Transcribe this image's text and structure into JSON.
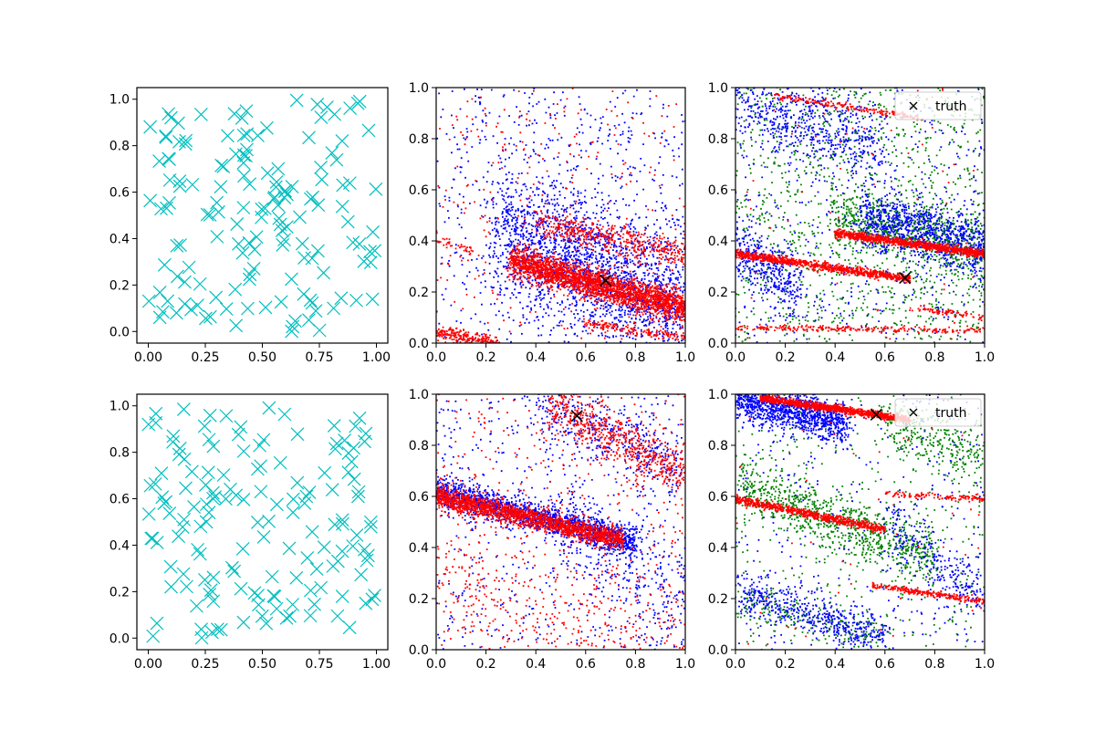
{
  "figure": {
    "layout": "2x3 grid of scatter panels"
  },
  "colors": {
    "samples": "#00bfbf",
    "series_blue": "#0000ff",
    "series_red": "#ff0000",
    "series_green": "#008000",
    "truth": "#000000",
    "axes": "#000000"
  },
  "chart_data": [
    {
      "id": "top-left",
      "type": "scatter",
      "title": "",
      "xlabel": "",
      "ylabel": "",
      "xlim": [
        -0.05,
        1.05
      ],
      "ylim": [
        -0.05,
        1.05
      ],
      "xticks": [
        "0.00",
        "0.25",
        "0.50",
        "0.75",
        "1.00"
      ],
      "yticks": [
        "0.0",
        "0.2",
        "0.4",
        "0.6",
        "0.8",
        "1.0"
      ],
      "series": [
        {
          "name": "samples",
          "marker": "x",
          "color": "#00bfbf",
          "count": 150,
          "distribution": "uniform over [0,1]x[0,1]",
          "seed": 11
        }
      ]
    },
    {
      "id": "top-middle",
      "type": "scatter",
      "title": "",
      "xlabel": "",
      "ylabel": "",
      "xlim": [
        0,
        1
      ],
      "ylim": [
        0,
        1
      ],
      "xticks": [
        "0.0",
        "0.2",
        "0.4",
        "0.6",
        "0.8",
        "1.0"
      ],
      "yticks": [
        "0.0",
        "0.2",
        "0.4",
        "0.6",
        "0.8",
        "1.0"
      ],
      "series": [
        {
          "name": "blue",
          "color": "#0000ff",
          "seed": 21,
          "background": 700,
          "bands": [
            {
              "from": [
                0.25,
                0.45
              ],
              "to": [
                1.0,
                0.13
              ],
              "spread": 0.13,
              "count": 2000
            }
          ]
        },
        {
          "name": "red",
          "color": "#ff0000",
          "seed": 22,
          "background": 300,
          "bands": [
            {
              "from": [
                0.3,
                0.32
              ],
              "to": [
                1.0,
                0.14
              ],
              "spread": 0.03,
              "count": 2400
            },
            {
              "from": [
                0.0,
                0.04
              ],
              "to": [
                0.25,
                0.0
              ],
              "spread": 0.015,
              "count": 250
            },
            {
              "from": [
                0.4,
                0.47
              ],
              "to": [
                1.0,
                0.35
              ],
              "spread": 0.03,
              "count": 450
            },
            {
              "from": [
                0.0,
                0.4
              ],
              "to": [
                0.15,
                0.36
              ],
              "spread": 0.01,
              "count": 40
            },
            {
              "from": [
                0.6,
                0.08
              ],
              "to": [
                1.0,
                0.02
              ],
              "spread": 0.01,
              "count": 150
            }
          ]
        }
      ],
      "truth": {
        "x": 0.68,
        "y": 0.245
      }
    },
    {
      "id": "top-right",
      "type": "scatter",
      "title": "",
      "xlabel": "",
      "ylabel": "",
      "xlim": [
        0,
        1
      ],
      "ylim": [
        0,
        1
      ],
      "xticks": [
        "0.0",
        "0.2",
        "0.4",
        "0.6",
        "0.8",
        "1.0"
      ],
      "yticks": [
        "0.0",
        "0.2",
        "0.4",
        "0.6",
        "0.8",
        "1.0"
      ],
      "series": [
        {
          "name": "green",
          "color": "#008000",
          "seed": 31,
          "background": 1200,
          "bands": [
            {
              "from": [
                0.4,
                0.5
              ],
              "to": [
                1.0,
                0.36
              ],
              "spread": 0.06,
              "count": 700
            }
          ]
        },
        {
          "name": "blue",
          "color": "#0000ff",
          "seed": 32,
          "background": 500,
          "bands": [
            {
              "from": [
                0.0,
                0.95
              ],
              "to": [
                0.6,
                0.75
              ],
              "spread": 0.08,
              "count": 600
            },
            {
              "from": [
                0.5,
                0.5
              ],
              "to": [
                1.0,
                0.38
              ],
              "spread": 0.06,
              "count": 900
            },
            {
              "from": [
                0.0,
                0.38
              ],
              "to": [
                0.25,
                0.2
              ],
              "spread": 0.06,
              "count": 350
            }
          ]
        },
        {
          "name": "red",
          "color": "#ff0000",
          "seed": 33,
          "background": 60,
          "bands": [
            {
              "from": [
                0.0,
                0.35
              ],
              "to": [
                0.7,
                0.25
              ],
              "spread": 0.008,
              "count": 900
            },
            {
              "from": [
                0.4,
                0.43
              ],
              "to": [
                1.0,
                0.35
              ],
              "spread": 0.008,
              "count": 1000
            },
            {
              "from": [
                0.0,
                0.06
              ],
              "to": [
                1.0,
                0.05
              ],
              "spread": 0.006,
              "count": 250
            },
            {
              "from": [
                0.15,
                0.97
              ],
              "to": [
                0.75,
                0.88
              ],
              "spread": 0.006,
              "count": 200
            },
            {
              "from": [
                0.7,
                0.14
              ],
              "to": [
                1.0,
                0.1
              ],
              "spread": 0.006,
              "count": 80
            }
          ]
        }
      ],
      "truth": {
        "x": 0.68,
        "y": 0.255
      },
      "legend": {
        "label": "truth",
        "marker": "x",
        "placement": "upper right"
      }
    },
    {
      "id": "bottom-left",
      "type": "scatter",
      "title": "",
      "xlabel": "",
      "ylabel": "",
      "xlim": [
        -0.05,
        1.05
      ],
      "ylim": [
        -0.05,
        1.05
      ],
      "xticks": [
        "0.00",
        "0.25",
        "0.50",
        "0.75",
        "1.00"
      ],
      "yticks": [
        "0.0",
        "0.2",
        "0.4",
        "0.6",
        "0.8",
        "1.0"
      ],
      "series": [
        {
          "name": "samples",
          "marker": "x",
          "color": "#00bfbf",
          "count": 150,
          "distribution": "uniform over [0,1]x[0,1]",
          "seed": 41
        }
      ]
    },
    {
      "id": "bottom-middle",
      "type": "scatter",
      "title": "",
      "xlabel": "",
      "ylabel": "",
      "xlim": [
        0,
        1
      ],
      "ylim": [
        0,
        1
      ],
      "xticks": [
        "0.0",
        "0.2",
        "0.4",
        "0.6",
        "0.8",
        "1.0"
      ],
      "yticks": [
        "0.0",
        "0.2",
        "0.4",
        "0.6",
        "0.8",
        "1.0"
      ],
      "series": [
        {
          "name": "blue",
          "color": "#0000ff",
          "seed": 51,
          "background": 500,
          "bands": [
            {
              "from": [
                0.0,
                0.62
              ],
              "to": [
                0.8,
                0.42
              ],
              "spread": 0.03,
              "count": 1500
            },
            {
              "from": [
                0.4,
                0.98
              ],
              "to": [
                1.0,
                0.7
              ],
              "spread": 0.07,
              "count": 400
            },
            {
              "from": [
                0.5,
                0.5
              ],
              "to": [
                1.0,
                0.2
              ],
              "spread": 0.1,
              "count": 300
            }
          ]
        },
        {
          "name": "red",
          "color": "#ff0000",
          "seed": 52,
          "background": 500,
          "bands": [
            {
              "from": [
                0.0,
                0.6
              ],
              "to": [
                0.75,
                0.43
              ],
              "spread": 0.02,
              "count": 1700
            },
            {
              "from": [
                0.45,
                0.97
              ],
              "to": [
                1.0,
                0.68
              ],
              "spread": 0.05,
              "count": 600
            },
            {
              "from": [
                0.0,
                0.22
              ],
              "to": [
                1.0,
                0.05
              ],
              "spread": 0.1,
              "count": 250
            }
          ]
        }
      ],
      "truth": {
        "x": 0.565,
        "y": 0.915
      }
    },
    {
      "id": "bottom-right",
      "type": "scatter",
      "title": "",
      "xlabel": "",
      "ylabel": "",
      "xlim": [
        0,
        1
      ],
      "ylim": [
        0,
        1
      ],
      "xticks": [
        "0.0",
        "0.2",
        "0.4",
        "0.6",
        "0.8",
        "1.0"
      ],
      "yticks": [
        "0.0",
        "0.2",
        "0.4",
        "0.6",
        "0.8",
        "1.0"
      ],
      "series": [
        {
          "name": "green",
          "color": "#008000",
          "seed": 61,
          "background": 400,
          "bands": [
            {
              "from": [
                0.0,
                0.65
              ],
              "to": [
                0.8,
                0.35
              ],
              "spread": 0.06,
              "count": 900
            },
            {
              "from": [
                0.6,
                0.9
              ],
              "to": [
                1.0,
                0.75
              ],
              "spread": 0.06,
              "count": 300
            },
            {
              "from": [
                0.0,
                0.2
              ],
              "to": [
                0.6,
                0.05
              ],
              "spread": 0.04,
              "count": 200
            }
          ]
        },
        {
          "name": "blue",
          "color": "#0000ff",
          "seed": 62,
          "background": 350,
          "bands": [
            {
              "from": [
                0.0,
                0.99
              ],
              "to": [
                0.45,
                0.88
              ],
              "spread": 0.04,
              "count": 1200
            },
            {
              "from": [
                0.0,
                0.22
              ],
              "to": [
                0.6,
                0.05
              ],
              "spread": 0.04,
              "count": 500
            },
            {
              "from": [
                0.6,
                0.5
              ],
              "to": [
                1.0,
                0.2
              ],
              "spread": 0.06,
              "count": 250
            }
          ]
        },
        {
          "name": "red",
          "color": "#ff0000",
          "seed": 63,
          "background": 50,
          "bands": [
            {
              "from": [
                0.1,
                0.985
              ],
              "to": [
                0.7,
                0.9
              ],
              "spread": 0.007,
              "count": 1100
            },
            {
              "from": [
                0.0,
                0.59
              ],
              "to": [
                0.6,
                0.47
              ],
              "spread": 0.008,
              "count": 700
            },
            {
              "from": [
                0.6,
                0.61
              ],
              "to": [
                1.0,
                0.59
              ],
              "spread": 0.006,
              "count": 120
            },
            {
              "from": [
                0.55,
                0.25
              ],
              "to": [
                1.0,
                0.19
              ],
              "spread": 0.006,
              "count": 250
            }
          ]
        }
      ],
      "truth": {
        "x": 0.565,
        "y": 0.92
      },
      "legend": {
        "label": "truth",
        "marker": "x",
        "placement": "upper right"
      }
    }
  ]
}
